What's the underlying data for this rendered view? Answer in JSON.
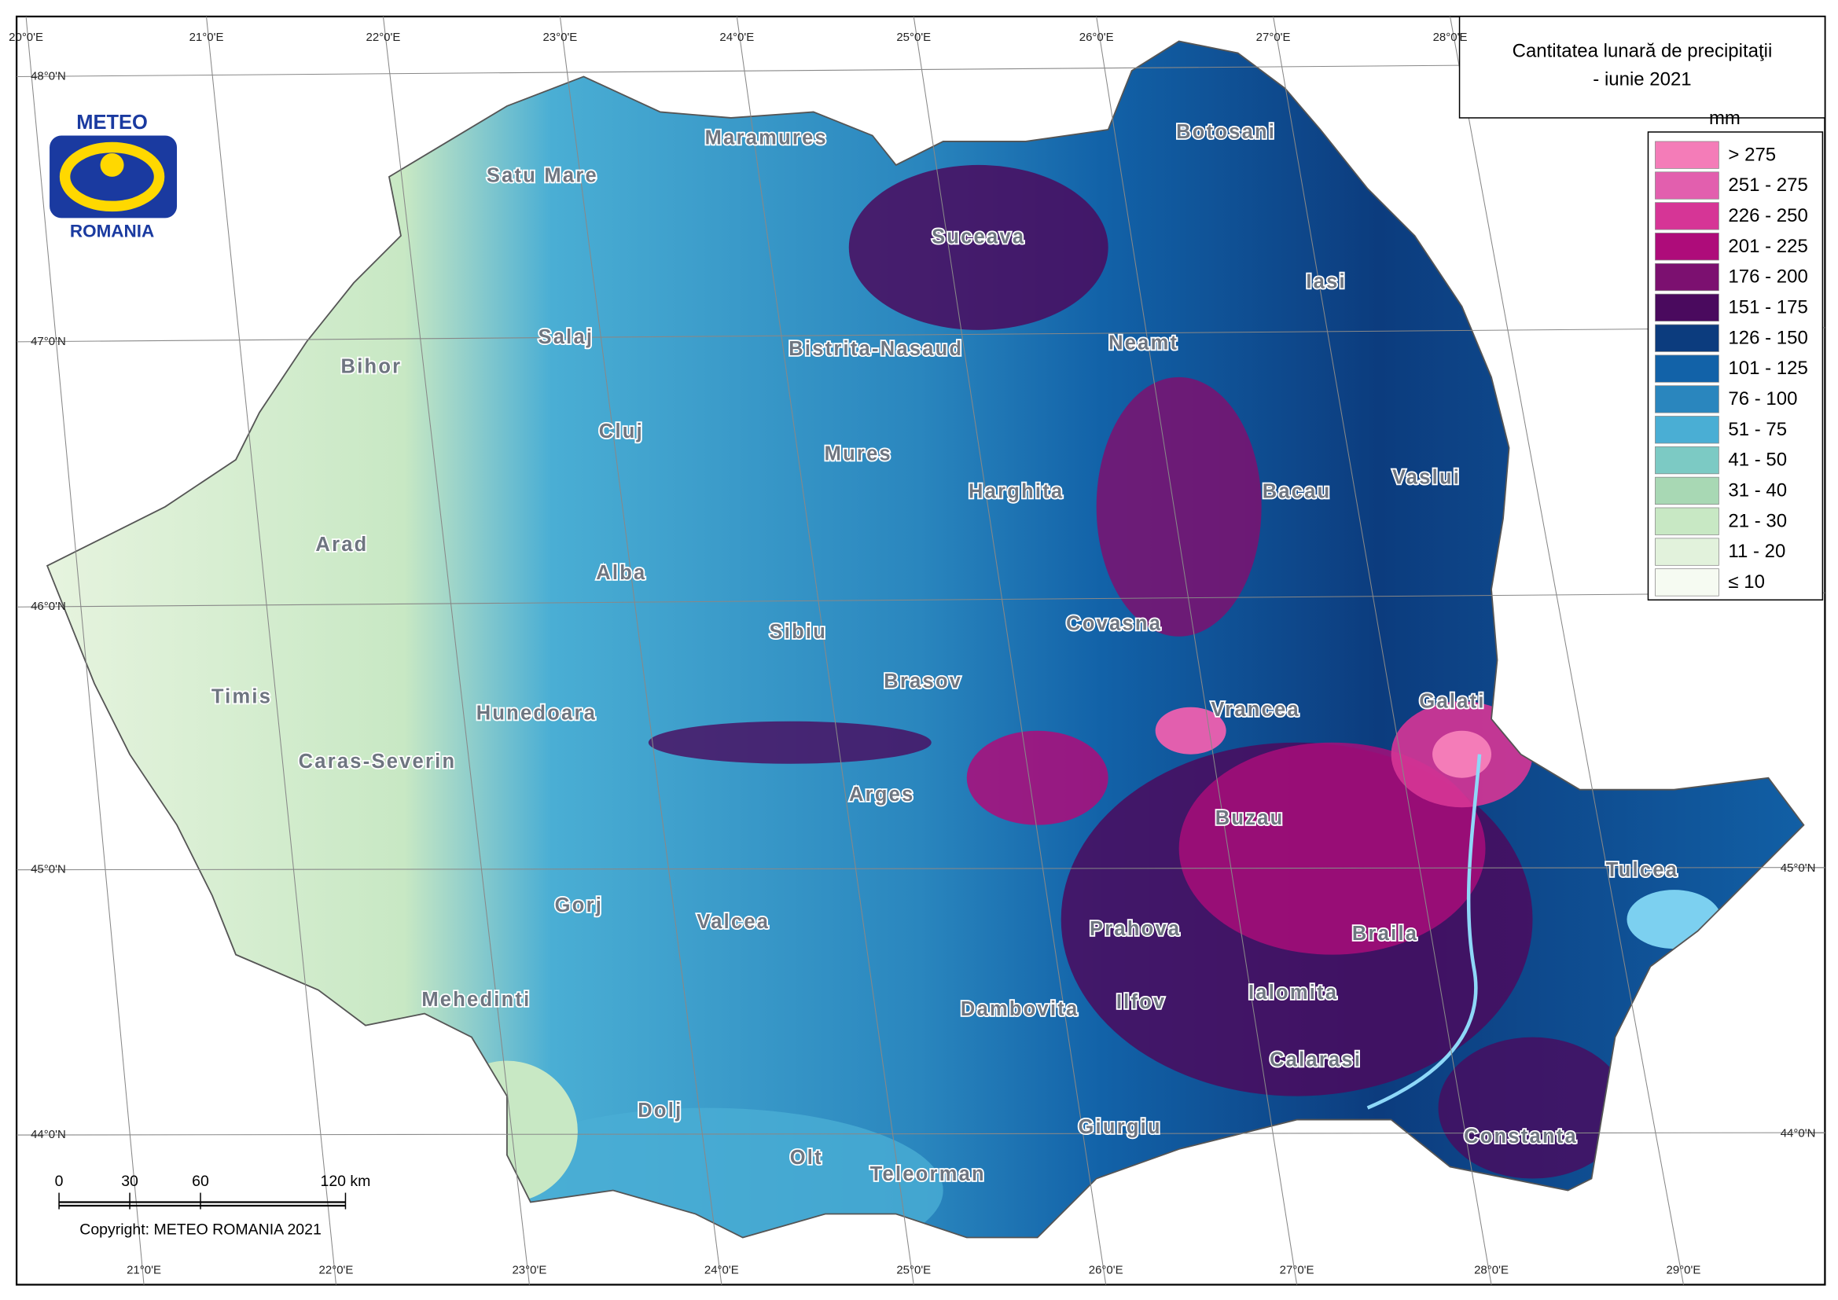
{
  "title": {
    "line1": "Cantitatea lunară de precipitaţii",
    "line2": "- iunie 2021"
  },
  "legend": {
    "unit": "mm",
    "items": [
      {
        "label": "> 275",
        "color": "#f47cb8"
      },
      {
        "label": "251 - 275",
        "color": "#e25fae"
      },
      {
        "label": "226 - 250",
        "color": "#d63596"
      },
      {
        "label": "201 - 225",
        "color": "#ae0c7a"
      },
      {
        "label": "176 - 200",
        "color": "#7c1070"
      },
      {
        "label": "151 - 175",
        "color": "#4a0a5e"
      },
      {
        "label": "126 - 150",
        "color": "#0c3c7e"
      },
      {
        "label": "101 - 125",
        "color": "#1262a8"
      },
      {
        "label": "76 - 100",
        "color": "#2a86be"
      },
      {
        "label": "51 - 75",
        "color": "#4aaed4"
      },
      {
        "label": "41 - 50",
        "color": "#7ccac4"
      },
      {
        "label": "31 - 40",
        "color": "#a8d8b4"
      },
      {
        "label": "21 - 30",
        "color": "#c8e8c4"
      },
      {
        "label": "11 - 20",
        "color": "#e2f2dc"
      },
      {
        "label": "≤ 10",
        "color": "#f6fbf2"
      }
    ]
  },
  "logo": {
    "top": "METEO",
    "bottom": "ROMANIA"
  },
  "graticule": {
    "top": [
      "20°0'E",
      "21°0'E",
      "22°0'E",
      "23°0'E",
      "24°0'E",
      "25°0'E",
      "26°0'E",
      "27°0'E",
      "28°0'E"
    ],
    "bottom": [
      "21°0'E",
      "22°0'E",
      "23°0'E",
      "24°0'E",
      "25°0'E",
      "26°0'E",
      "27°0'E",
      "28°0'E",
      "29°0'E"
    ],
    "left": [
      "48°0'N",
      "47°0'N",
      "46°0'N",
      "45°0'N",
      "44°0'N"
    ],
    "right": [
      "45°0'N",
      "44°0'N"
    ]
  },
  "scale_bar": {
    "labels": [
      "0",
      "30",
      "60",
      "120 km"
    ]
  },
  "copyright": "Copyright: METEO ROMANIA 2021",
  "counties": [
    "Satu Mare",
    "Maramures",
    "Suceava",
    "Botosani",
    "Iasi",
    "Neamt",
    "Bihor",
    "Salaj",
    "Cluj",
    "Bistrita-Nasaud",
    "Mures",
    "Harghita",
    "Bacau",
    "Vaslui",
    "Arad",
    "Alba",
    "Covasna",
    "Sibiu",
    "Timis",
    "Hunedoara",
    "Brasov",
    "Vrancea",
    "Galati",
    "Caras-Severin",
    "Arges",
    "Buzau",
    "Tulcea",
    "Gorj",
    "Valcea",
    "Prahova",
    "Braila",
    "Mehedinti",
    "Dambovita",
    "Ilfov",
    "Ialomita",
    "Calarasi",
    "Dolj",
    "Giurgiu",
    "Constanta",
    "Olt",
    "Teleorman"
  ]
}
